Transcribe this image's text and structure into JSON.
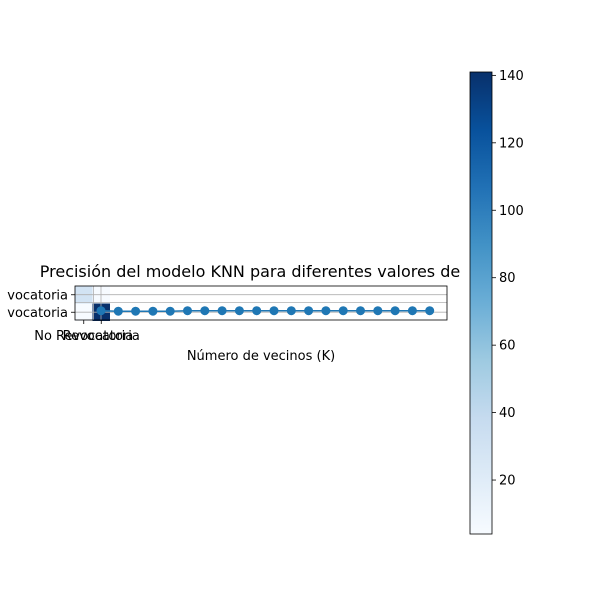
{
  "chart_data": [
    {
      "type": "heatmap",
      "title": "",
      "xlabel": "",
      "ylabel": "",
      "x_categories": [
        "No Revocatoria",
        "Revocatoria"
      ],
      "y_categories": [
        "No Revocatoria",
        "Revocatoria"
      ],
      "x_tick_labels_visible": [
        "No Revocatoria",
        "Revocatoria"
      ],
      "y_tick_labels_visible": [
        "vocatoria",
        "vocatoria"
      ],
      "values": [
        [
          30,
          5
        ],
        [
          4,
          141
        ]
      ],
      "colormap": "Blues",
      "colorbar": {
        "min": 4,
        "max": 141,
        "ticks": [
          20,
          40,
          60,
          80,
          100,
          120,
          140
        ],
        "tick_labels": [
          "20",
          "40",
          "60",
          "80",
          "100",
          "120",
          "140"
        ]
      }
    },
    {
      "type": "line",
      "title": "Precisión del modelo KNN para diferentes valores de",
      "xlabel": "Número de vecinos (K)",
      "ylabel": "",
      "x": [
        1,
        2,
        3,
        4,
        5,
        6,
        7,
        8,
        9,
        10,
        11,
        12,
        13,
        14,
        15,
        16,
        17,
        18,
        19,
        20
      ],
      "series": [
        {
          "values": [
            0.805,
            0.8,
            0.8,
            0.8,
            0.8,
            0.805,
            0.805,
            0.805,
            0.805,
            0.805,
            0.805,
            0.805,
            0.805,
            0.805,
            0.805,
            0.805,
            0.805,
            0.805,
            0.805,
            0.805
          ],
          "color": "#1f77b4",
          "marker": "circle"
        }
      ],
      "grid": true
    }
  ]
}
